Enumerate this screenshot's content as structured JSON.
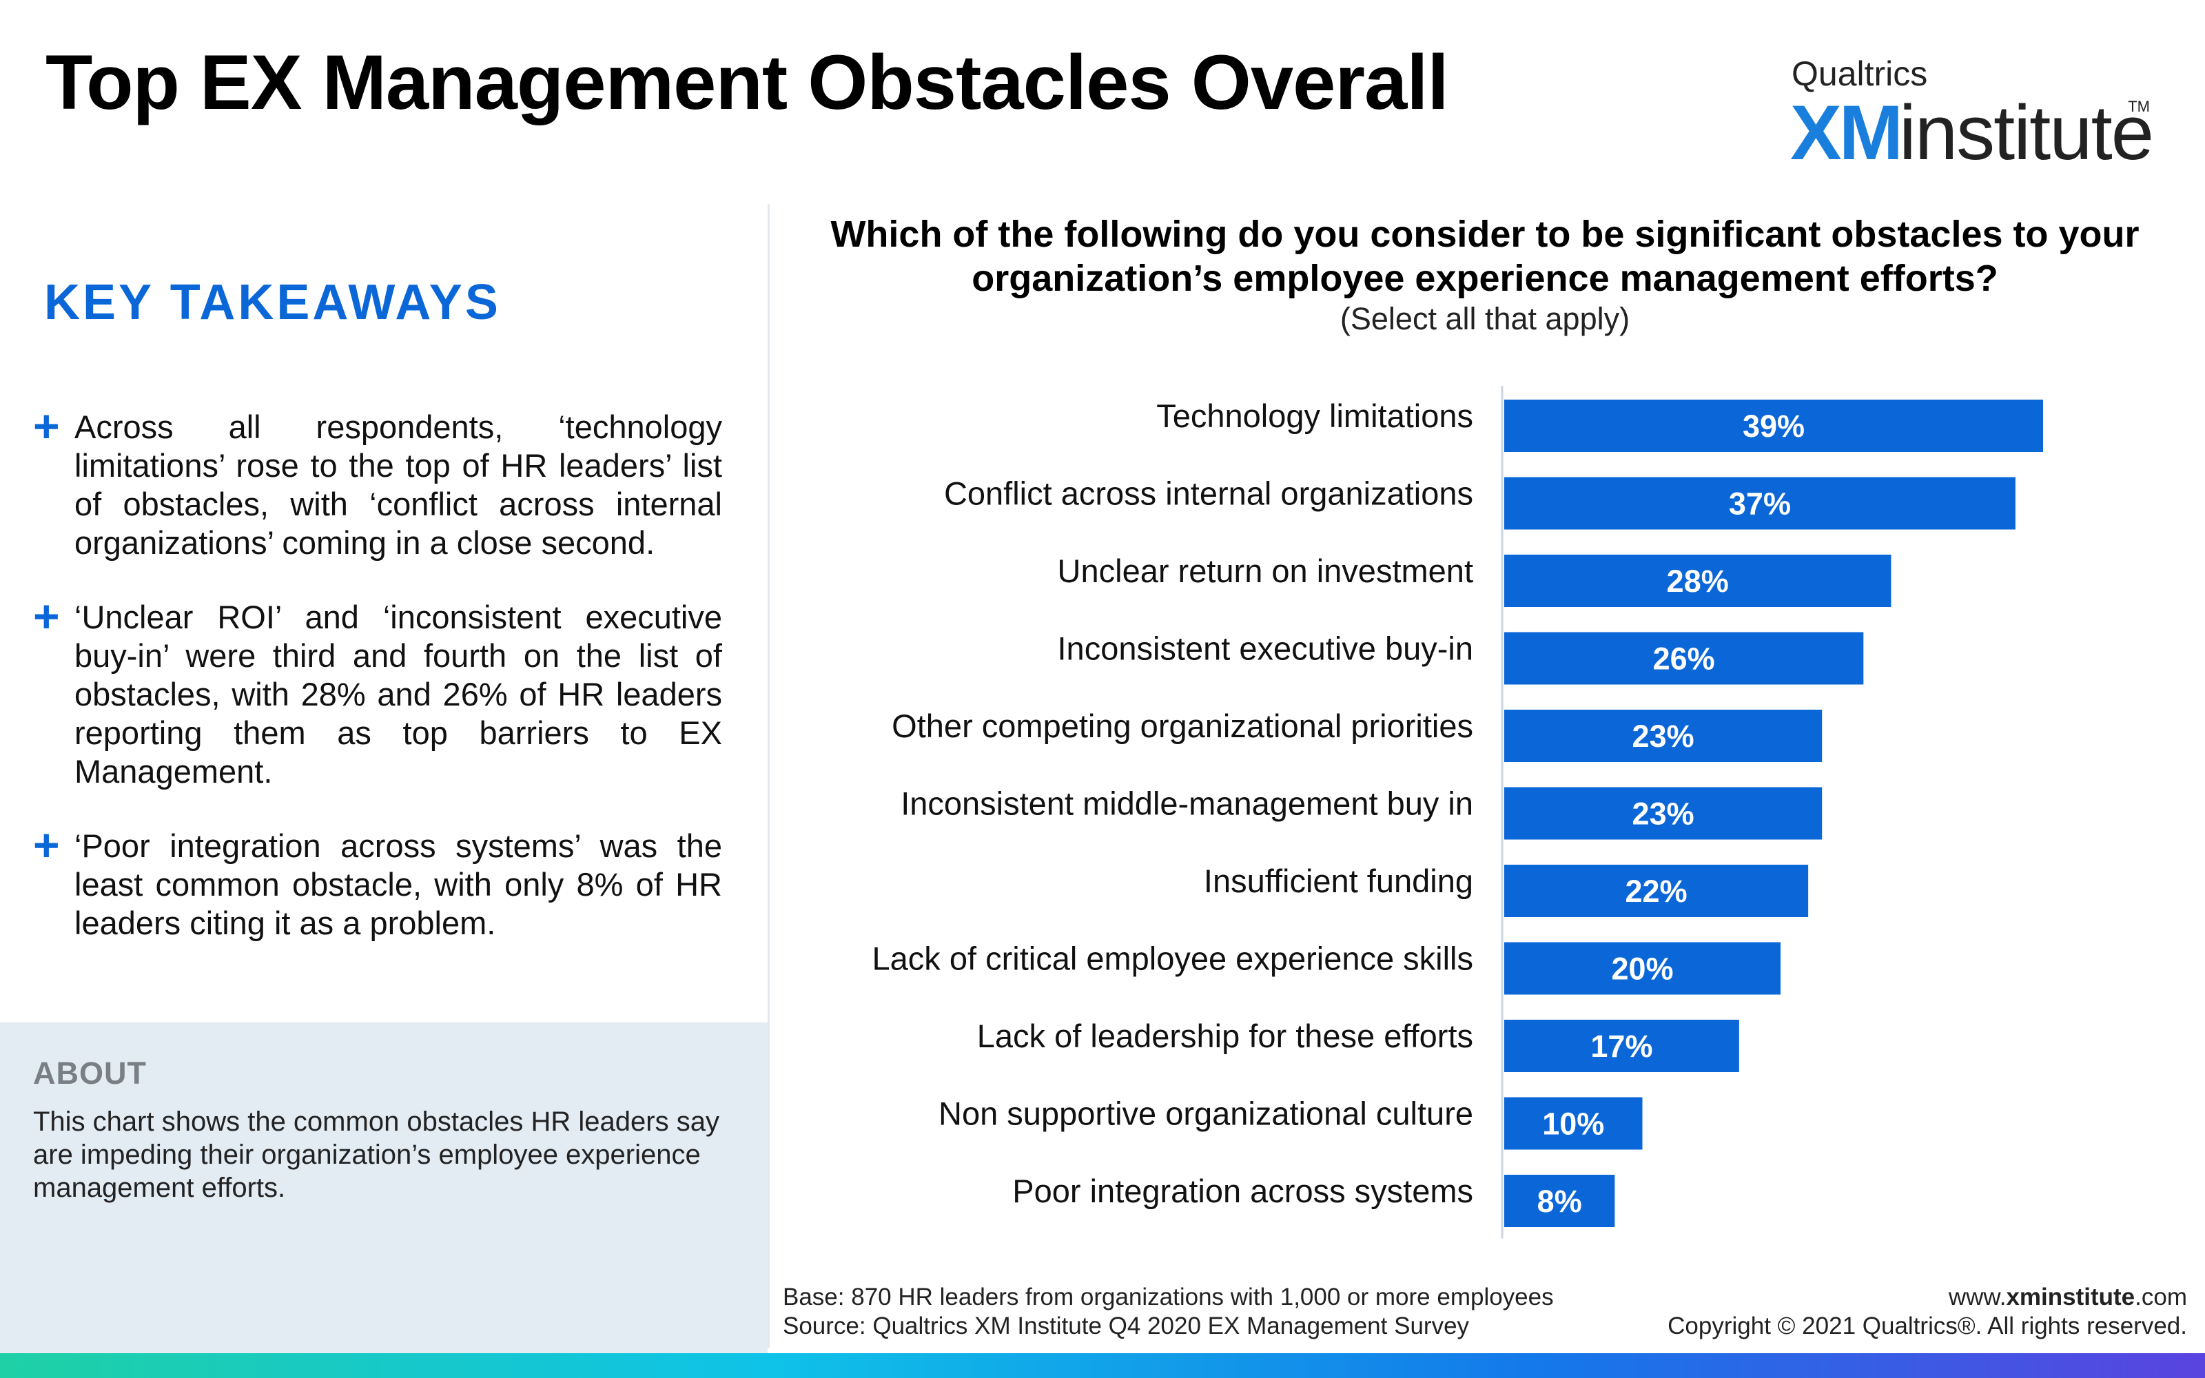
{
  "header": {
    "title": "Top EX Management Obstacles Overall",
    "brand_small": "Qualtrics",
    "brand_xm": "XM",
    "brand_institute": "institute",
    "brand_tm": "TM"
  },
  "takeaways": {
    "heading": "KEY TAKEAWAYS",
    "bullets": [
      "Across all respondents, ‘technology limitations’ rose to the top of HR leaders’ list of obstacles, with ‘conflict across internal organizations’ coming in a close second.",
      "‘Unclear ROI’ and ‘inconsistent executive buy-in’ were third and fourth on the list of obstacles, with 28% and 26% of HR leaders reporting them as top barriers to EX Management.",
      "‘Poor integration across systems’ was the least common obstacle, with only 8% of HR leaders citing it as a problem."
    ]
  },
  "about": {
    "heading": "ABOUT",
    "text": "This chart shows the common obstacles HR leaders say are impeding their organization’s employee experience management efforts."
  },
  "question": {
    "text": "Which of the following do you consider to be significant obstacles to your organization’s employee experience management efforts?",
    "note": "(Select all that apply)"
  },
  "chart_data": {
    "type": "bar",
    "orientation": "horizontal",
    "categories": [
      "Technology limitations",
      "Conflict across internal organizations",
      "Unclear return on investment",
      "Inconsistent executive buy-in",
      "Other competing organizational priorities",
      "Inconsistent middle-management buy in",
      "Insufficient funding",
      "Lack of critical employee experience skills",
      "Lack of leadership for these efforts",
      "Non supportive organizational culture",
      "Poor integration across systems"
    ],
    "values": [
      39,
      37,
      28,
      26,
      23,
      23,
      22,
      20,
      17,
      10,
      8
    ],
    "value_labels": [
      "39%",
      "37%",
      "28%",
      "26%",
      "23%",
      "23%",
      "22%",
      "20%",
      "17%",
      "10%",
      "8%"
    ],
    "title": "Which of the following do you consider to be significant obstacles to your organization’s employee experience management efforts?",
    "xlabel": "",
    "ylabel": "",
    "xlim": [
      0,
      39
    ],
    "grid": false,
    "legend": "none",
    "bar_color": "#0b67d8"
  },
  "footer": {
    "base": "Base: 870 HR leaders from organizations with 1,000 or more employees",
    "source": "Source: Qualtrics XM Institute Q4 2020  EX Management Survey",
    "url_prefix": "www.",
    "url_bold": "xminstitute",
    "url_suffix": ".com",
    "copyright": "Copyright © 2021 Qualtrics®. All rights reserved."
  },
  "colors": {
    "accent": "#0b67d8",
    "about_bg": "#e3ebf3"
  }
}
